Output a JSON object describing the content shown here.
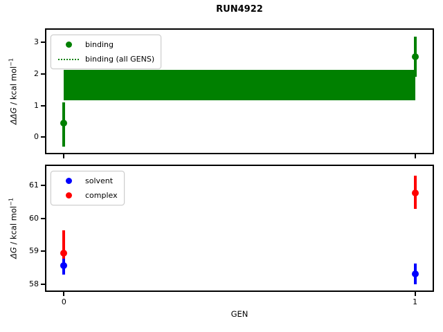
{
  "title": "RUN4922",
  "colors": {
    "binding": "#008000",
    "solvent": "#0000ff",
    "complex": "#ff0000",
    "axes": "#000000",
    "legend_border": "#cccccc"
  },
  "chart_data": [
    {
      "type": "scatter",
      "subplot": "top",
      "ylabel": "ΔΔG / kcal mol⁻¹",
      "ylabel_parts": {
        "sym": "ΔΔG",
        "rest": " / kcal mol",
        "sup": "−1"
      },
      "ylim": [
        -0.5,
        3.4
      ],
      "yticks": [
        0,
        1,
        2,
        3
      ],
      "xlim": [
        -0.05,
        1.05
      ],
      "xticks": [
        0,
        1
      ],
      "grid": false,
      "legend_position": "upper left",
      "series": [
        {
          "name": "binding",
          "color": "#008000",
          "marker": "circle",
          "points": [
            {
              "x": 0,
              "y": 0.44,
              "ylo": -0.31,
              "yhi": 1.1
            },
            {
              "x": 1,
              "y": 2.55,
              "ylo": 1.91,
              "yhi": 3.19
            }
          ]
        }
      ],
      "band": {
        "name": "binding (all GENS)",
        "color": "#008000",
        "x0": 0,
        "x1": 1,
        "center": 1.64,
        "ylo": 1.16,
        "yhi": 2.12,
        "line_style": "dotted"
      },
      "legend": [
        {
          "label": "binding",
          "symbol": "circle",
          "color": "#008000"
        },
        {
          "label": "binding (all GENS)",
          "symbol": "dotted-line",
          "color": "#008000"
        }
      ]
    },
    {
      "type": "scatter",
      "subplot": "bottom",
      "xlabel": "GEN",
      "ylabel": "ΔG / kcal mol⁻¹",
      "ylabel_parts": {
        "sym": "ΔG",
        "rest": " / kcal mol",
        "sup": "−1"
      },
      "ylim": [
        57.8,
        61.6
      ],
      "yticks": [
        58,
        59,
        60,
        61
      ],
      "xlim": [
        -0.05,
        1.05
      ],
      "xticks": [
        0,
        1
      ],
      "grid": false,
      "legend_position": "upper left",
      "series": [
        {
          "name": "solvent",
          "color": "#0000ff",
          "marker": "circle",
          "points": [
            {
              "x": 0,
              "y": 58.56,
              "ylo": 58.28,
              "yhi": 58.78
            },
            {
              "x": 1,
              "y": 58.31,
              "ylo": 58.0,
              "yhi": 58.62
            }
          ]
        },
        {
          "name": "complex",
          "color": "#ff0000",
          "marker": "circle",
          "points": [
            {
              "x": 0,
              "y": 58.95,
              "ylo": 58.3,
              "yhi": 59.63
            },
            {
              "x": 1,
              "y": 60.78,
              "ylo": 60.29,
              "yhi": 61.31
            }
          ]
        }
      ],
      "legend": [
        {
          "label": "solvent",
          "symbol": "circle",
          "color": "#0000ff"
        },
        {
          "label": "complex",
          "symbol": "circle",
          "color": "#ff0000"
        }
      ]
    }
  ]
}
